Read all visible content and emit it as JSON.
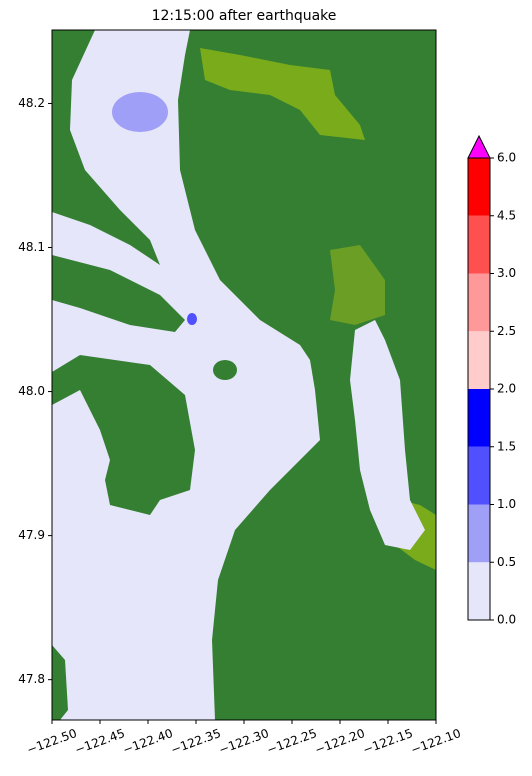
{
  "chart_data": {
    "type": "map",
    "title": "12:15:00 after earthquake",
    "xlim": [
      -122.5,
      -122.1
    ],
    "ylim": [
      47.772,
      48.251
    ],
    "xticks": [
      {
        "value": -122.5,
        "label": "−122.50"
      },
      {
        "value": -122.45,
        "label": "−122.45"
      },
      {
        "value": -122.4,
        "label": "−122.40"
      },
      {
        "value": -122.35,
        "label": "−122.35"
      },
      {
        "value": -122.3,
        "label": "−122.30"
      },
      {
        "value": -122.25,
        "label": "−122.25"
      },
      {
        "value": -122.2,
        "label": "−122.20"
      },
      {
        "value": -122.15,
        "label": "−122.15"
      },
      {
        "value": -122.1,
        "label": "−122.10"
      }
    ],
    "yticks": [
      47.8,
      47.9,
      {
        "value": 48.0,
        "label": "48.0"
      },
      48.1,
      48.2
    ],
    "colorbar": {
      "levels": [
        {
          "value": 0,
          "label": "0.0"
        },
        {
          "value": 0.5,
          "label": "0.5"
        },
        {
          "value": 1,
          "label": "1.0"
        },
        {
          "value": 1.5,
          "label": "1.5"
        },
        {
          "value": 2,
          "label": "2.0"
        },
        {
          "value": 2.5,
          "label": "2.5"
        },
        {
          "value": 3,
          "label": "3.0"
        },
        {
          "value": 4.5,
          "label": "4.5"
        },
        {
          "value": 6,
          "label": "6.0"
        }
      ],
      "colors": [
        "#e6e6fa",
        "#9f9ff8",
        "#5050ff",
        "#0000ff",
        "#ffcccc",
        "#ff9999",
        "#ff5050",
        "#ff0000"
      ],
      "extend_color": "#ff00ff"
    }
  }
}
